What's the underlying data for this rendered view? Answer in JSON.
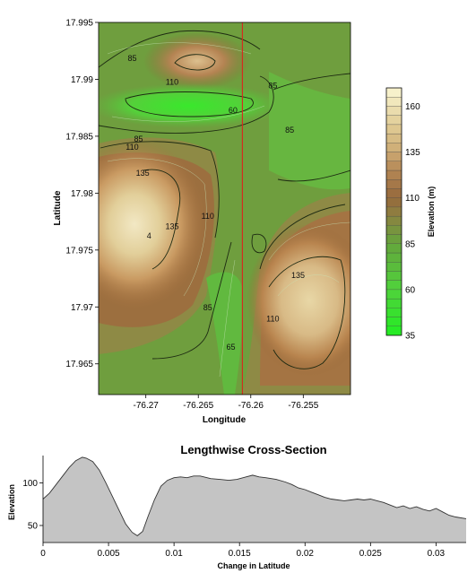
{
  "chart_data": [
    {
      "type": "heatmap",
      "subtype": "contour-map",
      "title": "",
      "xlabel": "Longitude",
      "ylabel": "Latitude",
      "xlim": [
        -76.2745,
        -76.2505
      ],
      "ylim": [
        17.9623,
        17.995
      ],
      "x_ticks": [
        -76.27,
        -76.265,
        -76.26,
        -76.255
      ],
      "x_tick_labels": [
        "-76.27",
        "-76.265",
        "-76.26",
        "-76.255"
      ],
      "y_ticks": [
        17.965,
        17.97,
        17.975,
        17.98,
        17.985,
        17.99,
        17.995
      ],
      "y_tick_labels": [
        "17.965",
        "17.97",
        "17.975",
        "17.98",
        "17.985",
        "17.99",
        "17.995"
      ],
      "contour_labels": [
        {
          "text": "85",
          "lon": -76.2713,
          "lat": 17.9919
        },
        {
          "text": "110",
          "lon": -76.2675,
          "lat": 17.9898
        },
        {
          "text": "85",
          "lon": -76.2579,
          "lat": 17.9895
        },
        {
          "text": "60",
          "lon": -76.2617,
          "lat": 17.9873
        },
        {
          "text": "85",
          "lon": -76.2707,
          "lat": 17.9848
        },
        {
          "text": "85",
          "lon": -76.2563,
          "lat": 17.9856
        },
        {
          "text": "110",
          "lon": -76.2713,
          "lat": 17.9841
        },
        {
          "text": "135",
          "lon": -76.2703,
          "lat": 17.9818
        },
        {
          "text": "4",
          "lon": -76.2697,
          "lat": 17.9763
        },
        {
          "text": "135",
          "lon": -76.2675,
          "lat": 17.9771
        },
        {
          "text": "110",
          "lon": -76.2641,
          "lat": 17.978
        },
        {
          "text": "135",
          "lon": -76.2555,
          "lat": 17.9728
        },
        {
          "text": "85",
          "lon": -76.2641,
          "lat": 17.97
        },
        {
          "text": "110",
          "lon": -76.2579,
          "lat": 17.969
        },
        {
          "text": "65",
          "lon": -76.2619,
          "lat": 17.9665
        }
      ],
      "transect_line": {
        "lon": -76.2608,
        "lat_from": 17.9623,
        "lat_to": 17.995,
        "color": "#d9261c"
      },
      "colorbar": {
        "label": "Elevation (m)",
        "min": 35,
        "max": 170,
        "ticks": [
          35,
          60,
          85,
          110,
          135,
          160
        ],
        "tick_labels": [
          "35",
          "60",
          "85",
          "110",
          "135",
          "160"
        ]
      },
      "grid": false
    },
    {
      "type": "area",
      "title": "Lengthwise Cross-Section",
      "xlabel": "Change in Latitude",
      "ylabel": "Elevation",
      "xlim": [
        0,
        0.0323
      ],
      "ylim": [
        30,
        132
      ],
      "x_ticks": [
        0,
        0.005,
        0.01,
        0.015,
        0.02,
        0.025,
        0.03
      ],
      "x_tick_labels": [
        "0",
        "0.005",
        "0.01",
        "0.015",
        "0.02",
        "0.025",
        "0.03"
      ],
      "y_ticks": [
        50,
        100
      ],
      "y_tick_labels": [
        "50",
        "100"
      ],
      "fill_color": "#c4c4c4",
      "line_color": "#333333",
      "x": [
        0,
        0.0005,
        0.001,
        0.0015,
        0.002,
        0.0025,
        0.003,
        0.0033,
        0.0038,
        0.0043,
        0.0048,
        0.0053,
        0.0058,
        0.0063,
        0.0068,
        0.0072,
        0.0076,
        0.008,
        0.0085,
        0.009,
        0.0095,
        0.01,
        0.0105,
        0.011,
        0.0115,
        0.012,
        0.0128,
        0.0135,
        0.0142,
        0.0148,
        0.0155,
        0.016,
        0.0165,
        0.017,
        0.0178,
        0.0185,
        0.019,
        0.0195,
        0.02,
        0.0205,
        0.021,
        0.0215,
        0.022,
        0.0225,
        0.023,
        0.0235,
        0.024,
        0.0245,
        0.025,
        0.0255,
        0.026,
        0.0265,
        0.027,
        0.0275,
        0.028,
        0.0285,
        0.029,
        0.0295,
        0.03,
        0.0305,
        0.031,
        0.0315,
        0.0323
      ],
      "y": [
        81,
        88,
        98,
        108,
        118,
        126,
        130,
        129,
        125,
        115,
        100,
        84,
        68,
        52,
        42,
        38,
        43,
        60,
        80,
        96,
        103,
        106,
        107,
        106,
        108,
        108,
        105,
        104,
        103,
        104,
        107,
        109,
        107,
        106,
        104,
        101,
        98,
        94,
        92,
        89,
        86,
        83,
        81,
        80,
        79,
        80,
        81,
        80,
        81,
        79,
        77,
        74,
        71,
        73,
        70,
        72,
        69,
        67,
        70,
        66,
        62,
        60,
        58
      ]
    }
  ]
}
